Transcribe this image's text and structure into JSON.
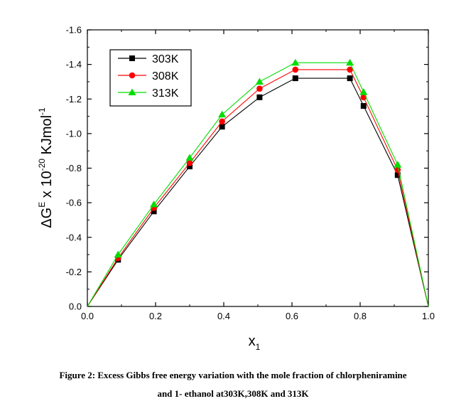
{
  "chart_data": {
    "type": "line",
    "xlabel": "x",
    "xlabel_sub": "1",
    "ylabel": "ΔG",
    "ylabel_sup": "E",
    "ylabel_mid": " x 10",
    "ylabel_exp": "-20",
    "ylabel_unit": " KJmol",
    "ylabel_unit_exp": "-1",
    "xlim": [
      0.0,
      1.0
    ],
    "ylim": [
      0.0,
      -1.6
    ],
    "x_ticks": [
      "0.0",
      "0.2",
      "0.4",
      "0.6",
      "0.8",
      "1.0"
    ],
    "y_ticks": [
      "0.0",
      "-0.2",
      "-0.4",
      "-0.6",
      "-0.8",
      "-1.0",
      "-1.2",
      "-1.4",
      "-1.6"
    ],
    "x": [
      0.0,
      0.09,
      0.195,
      0.3,
      0.395,
      0.505,
      0.61,
      0.77,
      0.81,
      0.91,
      1.0
    ],
    "series": [
      {
        "name": "303K",
        "color": "#000000",
        "marker": "square",
        "values": [
          0.0,
          -0.27,
          -0.55,
          -0.81,
          -1.04,
          -1.21,
          -1.32,
          -1.32,
          -1.16,
          -0.76,
          0.0
        ]
      },
      {
        "name": "308K",
        "color": "#ff0000",
        "marker": "circle",
        "values": [
          0.0,
          -0.28,
          -0.57,
          -0.83,
          -1.07,
          -1.26,
          -1.37,
          -1.37,
          -1.21,
          -0.79,
          0.0
        ]
      },
      {
        "name": "313K",
        "color": "#00dd00",
        "marker": "triangle",
        "values": [
          0.0,
          -0.3,
          -0.59,
          -0.86,
          -1.11,
          -1.3,
          -1.41,
          -1.41,
          -1.24,
          -0.82,
          0.0
        ]
      }
    ],
    "legend_position": "top-left"
  },
  "caption": {
    "line1": "Figure 2: Excess Gibbs free energy variation with the mole fraction of chlorpheniramine",
    "line2": "and 1- ethanol at303K,308K and 313K"
  }
}
